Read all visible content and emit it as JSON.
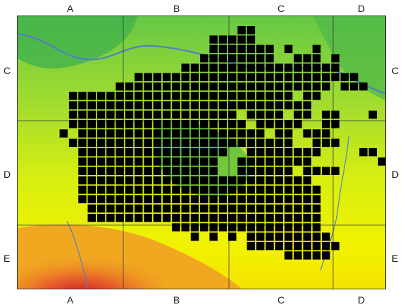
{
  "map": {
    "column_labels": [
      "A",
      "B",
      "C",
      "D"
    ],
    "row_labels": [
      "C",
      "D",
      "E"
    ],
    "colors": {
      "lowland": "#f2f200",
      "plain": "#9fdd2c",
      "valley": "#32b04a",
      "river": "#4f80c6",
      "highland": "#f09a20",
      "peak": "#c62020",
      "grid_line": "#3a3a3a",
      "occupied_cell": "#000000"
    },
    "occupied_cells_count": 427,
    "grid_shape": {
      "columns": 39,
      "rows": 28
    }
  }
}
